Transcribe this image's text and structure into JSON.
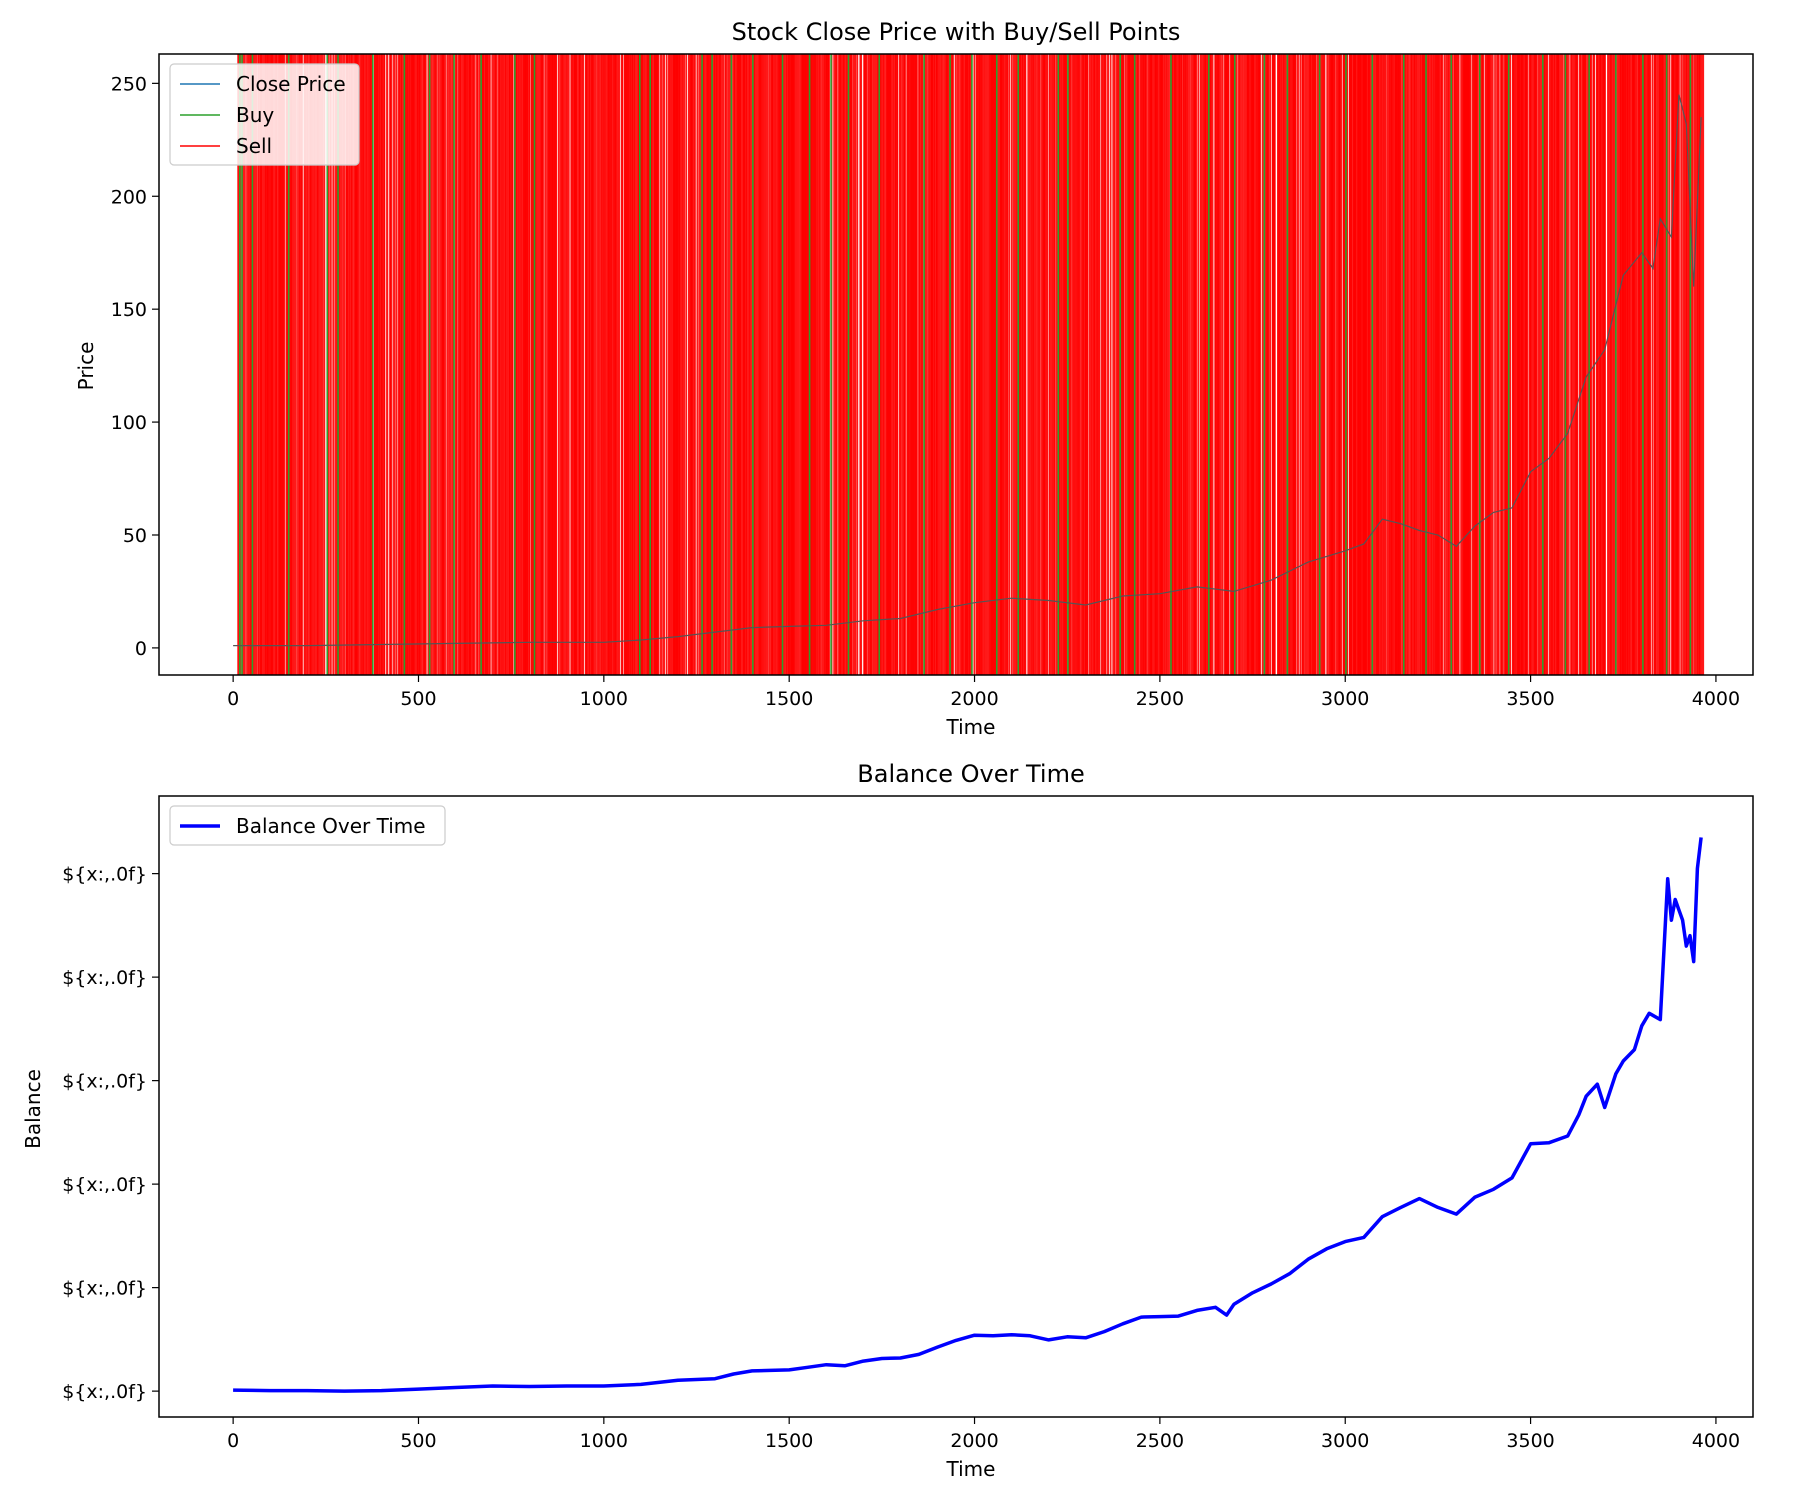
{
  "chart_data": [
    {
      "type": "line",
      "title": "Stock Close Price with Buy/Sell Points",
      "xlabel": "Time",
      "ylabel": "Price",
      "xlim": [
        -200,
        4100
      ],
      "ylim": [
        -12,
        263
      ],
      "xticks": [
        0,
        500,
        1000,
        1500,
        2000,
        2500,
        3000,
        3500,
        4000
      ],
      "xtick_labels": [
        "0",
        "500",
        "1000",
        "1500",
        "2000",
        "2500",
        "3000",
        "3500",
        "4000"
      ],
      "yticks": [
        0,
        50,
        100,
        150,
        200,
        250
      ],
      "ytick_labels": [
        "0",
        "50",
        "100",
        "150",
        "200",
        "250"
      ],
      "grid": false,
      "legend_position": "upper-left",
      "series": [
        {
          "name": "Close Price",
          "color": "#1f77b4",
          "x": [
            0,
            200,
            400,
            600,
            800,
            1000,
            1100,
            1200,
            1300,
            1400,
            1500,
            1600,
            1700,
            1800,
            1900,
            2000,
            2100,
            2200,
            2300,
            2400,
            2500,
            2600,
            2700,
            2800,
            2900,
            3000,
            3050,
            3100,
            3150,
            3200,
            3250,
            3300,
            3350,
            3400,
            3450,
            3500,
            3550,
            3600,
            3650,
            3700,
            3750,
            3800,
            3830,
            3850,
            3880,
            3900,
            3920,
            3940,
            3960
          ],
          "y": [
            1,
            1,
            1.5,
            2,
            2.5,
            2.5,
            3.5,
            5,
            7,
            9,
            9.5,
            10,
            12,
            13,
            17,
            20,
            22,
            21,
            19,
            23,
            24,
            27,
            25,
            30,
            38,
            43,
            46,
            57,
            55,
            52,
            50,
            45,
            54,
            60,
            62,
            78,
            84,
            95,
            120,
            132,
            165,
            175,
            168,
            190,
            182,
            245,
            232,
            160,
            235
          ]
        },
        {
          "name": "Buy",
          "color": "#2ca02c",
          "x": [
            18,
            24,
            52,
            150,
            254,
            283,
            377,
            462,
            530,
            596,
            669,
            760,
            813,
            1097,
            1125,
            1265,
            1292,
            1344,
            1402,
            1482,
            1555,
            1613,
            1660,
            1743,
            1864,
            1934,
            1993,
            2060,
            2118,
            2226,
            2252,
            2393,
            2432,
            2530,
            2632,
            2702,
            2782,
            2844,
            2931,
            3002,
            3073,
            3158,
            3218,
            3286,
            3363,
            3441,
            3533,
            3594,
            3658,
            3730,
            3803,
            3867,
            3931
          ]
        },
        {
          "name": "Sell",
          "color": "#ff0000",
          "x": []
        }
      ]
    },
    {
      "type": "line",
      "title": "Balance Over Time",
      "xlabel": "Time",
      "ylabel": "Balance",
      "xlim": [
        -200,
        4100
      ],
      "ylim": [
        0,
        1.2
      ],
      "xticks": [
        0,
        500,
        1000,
        1500,
        2000,
        2500,
        3000,
        3500,
        4000
      ],
      "xtick_labels": [
        "0",
        "500",
        "1000",
        "1500",
        "2000",
        "2500",
        "3000",
        "3500",
        "4000"
      ],
      "yticks": [
        0.05,
        0.25,
        0.45,
        0.65,
        0.85,
        1.05
      ],
      "ytick_labels": [
        "${x:,.0f}",
        "${x:,.0f}",
        "${x:,.0f}",
        "${x:,.0f}",
        "${x:,.0f}",
        "${x:,.0f}"
      ],
      "grid": false,
      "legend_position": "upper-left",
      "series": [
        {
          "name": "Balance Over Time",
          "color": "#0000ff",
          "x": [
            0,
            100,
            200,
            300,
            400,
            500,
            600,
            700,
            800,
            900,
            1000,
            1100,
            1200,
            1300,
            1350,
            1400,
            1450,
            1500,
            1550,
            1600,
            1650,
            1700,
            1750,
            1800,
            1850,
            1900,
            1950,
            2000,
            2050,
            2100,
            2150,
            2200,
            2250,
            2300,
            2350,
            2400,
            2450,
            2500,
            2550,
            2600,
            2650,
            2680,
            2700,
            2750,
            2800,
            2850,
            2900,
            2950,
            3000,
            3050,
            3100,
            3150,
            3200,
            3250,
            3300,
            3350,
            3400,
            3450,
            3500,
            3550,
            3600,
            3630,
            3650,
            3680,
            3700,
            3730,
            3750,
            3780,
            3800,
            3820,
            3850,
            3870,
            3880,
            3890,
            3900,
            3910,
            3920,
            3930,
            3940,
            3950,
            3960
          ],
          "y": [
            0.052,
            0.051,
            0.051,
            0.05,
            0.051,
            0.054,
            0.057,
            0.06,
            0.059,
            0.06,
            0.06,
            0.063,
            0.071,
            0.074,
            0.083,
            0.089,
            0.09,
            0.091,
            0.096,
            0.101,
            0.099,
            0.108,
            0.113,
            0.114,
            0.121,
            0.135,
            0.148,
            0.158,
            0.157,
            0.159,
            0.157,
            0.149,
            0.155,
            0.153,
            0.165,
            0.18,
            0.193,
            0.194,
            0.195,
            0.206,
            0.212,
            0.197,
            0.218,
            0.24,
            0.257,
            0.277,
            0.305,
            0.325,
            0.339,
            0.347,
            0.387,
            0.405,
            0.422,
            0.405,
            0.392,
            0.425,
            0.44,
            0.462,
            0.528,
            0.53,
            0.543,
            0.584,
            0.62,
            0.643,
            0.598,
            0.663,
            0.688,
            0.71,
            0.756,
            0.78,
            0.768,
            1.04,
            0.96,
            1.0,
            0.98,
            0.96,
            0.91,
            0.93,
            0.88,
            1.06,
            1.12
          ]
        }
      ]
    }
  ]
}
